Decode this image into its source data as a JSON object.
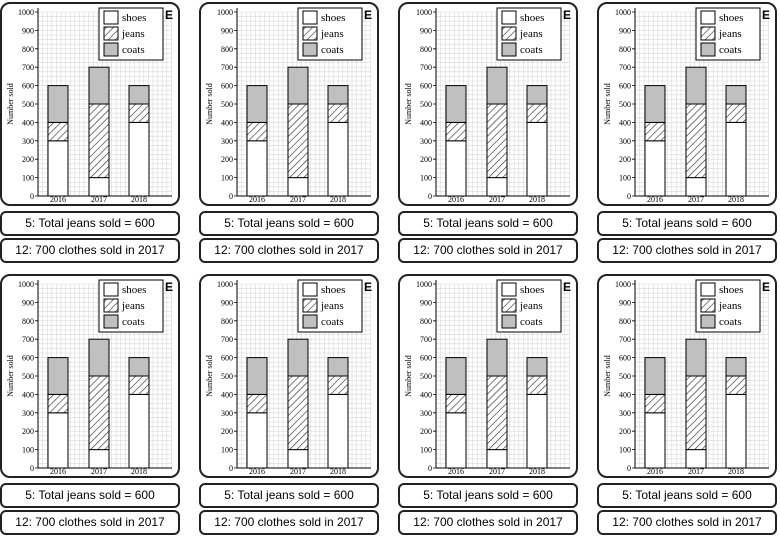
{
  "tag": "E",
  "info_lines": [
    "5: Total jeans sold = 600",
    "12: 700 clothes sold in 2017"
  ],
  "chart_data": {
    "type": "bar",
    "stacked": true,
    "categories": [
      "2016",
      "2017",
      "2018"
    ],
    "series": [
      {
        "name": "shoes",
        "values": [
          300,
          100,
          400
        ],
        "fill": "#ffffff"
      },
      {
        "name": "jeans",
        "values": [
          100,
          400,
          100
        ],
        "fill": "hatched"
      },
      {
        "name": "coats",
        "values": [
          200,
          200,
          100
        ],
        "fill": "#c0c0c0"
      }
    ],
    "ylabel": "Number sold",
    "xlabel": "",
    "ylim": [
      0,
      1000
    ],
    "yticks": [
      0,
      100,
      200,
      300,
      400,
      500,
      600,
      700,
      800,
      900,
      1000
    ],
    "grid": true,
    "legend": "top-right"
  },
  "copies": 8
}
